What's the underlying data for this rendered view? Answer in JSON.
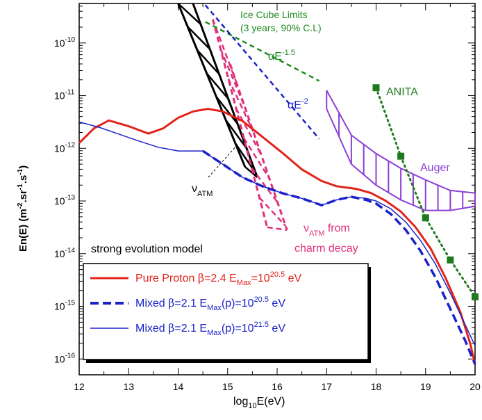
{
  "chart_data": {
    "type": "line",
    "x_log_range": [
      12,
      20
    ],
    "y_log_range": [
      -16.3,
      -9.25
    ],
    "xlabel": {
      "main": "log",
      "sub": "10",
      "rest": "E(eV)"
    },
    "ylabel": {
      "main": "En(E) (m",
      "exp1": "-2",
      "mid1": ".sr",
      "exp2": "-1",
      "mid2": ".s",
      "exp3": "-1",
      "end": ")"
    },
    "x_ticks": [
      "12",
      "13",
      "14",
      "15",
      "16",
      "17",
      "18",
      "19",
      "20"
    ],
    "y_ticks": [
      {
        "exp": -16,
        "label_base": "10",
        "label_exp": "-16"
      },
      {
        "exp": -15,
        "label_base": "10",
        "label_exp": "-15"
      },
      {
        "exp": -14,
        "label_base": "10",
        "label_exp": "-14"
      },
      {
        "exp": -13,
        "label_base": "10",
        "label_exp": "-13"
      },
      {
        "exp": -12,
        "label_base": "10",
        "label_exp": "-12"
      },
      {
        "exp": -11,
        "label_base": "10",
        "label_exp": "-11"
      },
      {
        "exp": -10,
        "label_base": "10",
        "label_exp": "-10"
      }
    ],
    "series": [
      {
        "name": "Pure Proton",
        "color": "#e2231a",
        "style": "solid-thick",
        "points": [
          [
            12,
            -11.9
          ],
          [
            12.3,
            -11.62
          ],
          [
            12.6,
            -11.47
          ],
          [
            13.0,
            -11.58
          ],
          [
            13.4,
            -11.72
          ],
          [
            13.7,
            -11.62
          ],
          [
            14.0,
            -11.42
          ],
          [
            14.3,
            -11.3
          ],
          [
            14.6,
            -11.25
          ],
          [
            14.9,
            -11.3
          ],
          [
            15.3,
            -11.48
          ],
          [
            15.7,
            -11.78
          ],
          [
            16.1,
            -12.08
          ],
          [
            16.5,
            -12.4
          ],
          [
            16.9,
            -12.62
          ],
          [
            17.2,
            -12.72
          ],
          [
            17.6,
            -12.77
          ],
          [
            17.9,
            -12.85
          ],
          [
            18.2,
            -13.0
          ],
          [
            18.5,
            -13.2
          ],
          [
            18.8,
            -13.5
          ],
          [
            19.1,
            -13.9
          ],
          [
            19.4,
            -14.45
          ],
          [
            19.7,
            -15.1
          ],
          [
            19.9,
            -15.7
          ],
          [
            20.0,
            -16.1
          ]
        ]
      },
      {
        "name": "Mixed 20.5",
        "color": "#1a22c8",
        "style": "dashed-thick",
        "points": [
          [
            14.5,
            -12.05
          ],
          [
            14.9,
            -12.3
          ],
          [
            15.3,
            -12.55
          ],
          [
            15.7,
            -12.72
          ],
          [
            16.1,
            -12.85
          ],
          [
            16.5,
            -12.95
          ],
          [
            16.9,
            -13.08
          ],
          [
            17.2,
            -12.98
          ],
          [
            17.5,
            -12.92
          ],
          [
            17.8,
            -12.98
          ],
          [
            18.0,
            -13.05
          ],
          [
            18.3,
            -13.25
          ],
          [
            18.6,
            -13.55
          ],
          [
            18.9,
            -13.95
          ],
          [
            19.2,
            -14.45
          ],
          [
            19.5,
            -15.05
          ],
          [
            19.8,
            -15.65
          ],
          [
            20.0,
            -16.1
          ]
        ]
      },
      {
        "name": "Mixed 21.5",
        "color": "#1a22c8",
        "style": "solid-thin",
        "points": [
          [
            12,
            -11.5
          ],
          [
            12.4,
            -11.6
          ],
          [
            12.8,
            -11.73
          ],
          [
            13.2,
            -11.86
          ],
          [
            13.6,
            -11.98
          ],
          [
            14.0,
            -12.05
          ],
          [
            14.5,
            -12.05
          ],
          [
            14.9,
            -12.3
          ],
          [
            15.3,
            -12.55
          ],
          [
            15.7,
            -12.72
          ],
          [
            16.1,
            -12.85
          ],
          [
            16.5,
            -12.95
          ],
          [
            16.9,
            -13.08
          ],
          [
            17.2,
            -12.98
          ],
          [
            17.5,
            -12.92
          ],
          [
            17.8,
            -12.95
          ],
          [
            18.0,
            -13.0
          ],
          [
            18.3,
            -13.15
          ],
          [
            18.6,
            -13.4
          ],
          [
            18.9,
            -13.75
          ],
          [
            19.2,
            -14.2
          ],
          [
            19.5,
            -14.75
          ],
          [
            19.8,
            -15.35
          ],
          [
            20.0,
            -15.75
          ]
        ]
      },
      {
        "name": "Ice Cube E^-1.5",
        "color": "#1f8a1f",
        "style": "dashed",
        "points": [
          [
            14.55,
            -9.6
          ],
          [
            16.85,
            -10.72
          ]
        ]
      },
      {
        "name": "Ice Cube E^-2",
        "color": "#1a22c8",
        "style": "dashed",
        "points": [
          [
            14.55,
            -9.28
          ],
          [
            16.85,
            -11.82
          ]
        ]
      },
      {
        "name": "ANITA",
        "color": "#1f7a1f",
        "style": "dotted-markers",
        "points": [
          [
            18.0,
            -10.85
          ],
          [
            18.5,
            -12.15
          ],
          [
            19.0,
            -13.32
          ],
          [
            19.5,
            -14.12
          ],
          [
            20.0,
            -14.82
          ]
        ]
      }
    ],
    "bands": [
      {
        "name": "nu ATM",
        "color": "#000000",
        "lower": [
          [
            14.3,
            -9.25
          ],
          [
            15.6,
            -12.55
          ]
        ],
        "upper": [
          [
            14.0,
            -9.25
          ],
          [
            15.35,
            -12.35
          ]
        ]
      },
      {
        "name": "nu ATM charm",
        "color": "#e0307a",
        "dashed": true,
        "lower": [
          [
            15.05,
            -10.4
          ],
          [
            16.2,
            -13.55
          ]
        ],
        "upper": [
          [
            14.7,
            -9.55
          ],
          [
            15.8,
            -13.5
          ]
        ]
      },
      {
        "name": "Auger",
        "color": "#8a3fd6",
        "upper": [
          [
            17.0,
            -10.9
          ],
          [
            17.5,
            -11.75
          ],
          [
            18.0,
            -12.1
          ],
          [
            18.5,
            -12.38
          ],
          [
            19.0,
            -12.6
          ],
          [
            19.5,
            -12.8
          ],
          [
            20.0,
            -12.85
          ]
        ],
        "lower": [
          [
            17.0,
            -11.25
          ],
          [
            17.5,
            -12.3
          ],
          [
            18.0,
            -12.7
          ],
          [
            18.5,
            -12.98
          ],
          [
            19.0,
            -13.18
          ],
          [
            19.5,
            -13.18
          ],
          [
            20.0,
            -13.1
          ]
        ]
      }
    ],
    "annotations": {
      "icecube_line1": "Ice Cube Limits",
      "icecube_line2": "(3 years, 90% C.L)",
      "e15_base": "αE",
      "e15_exp": "-1.5",
      "e2_base": "αE",
      "e2_exp": "-2",
      "anita": "ANITA",
      "auger": "Auger",
      "nuatm_nu": "ν",
      "nuatm_sub": "ATM",
      "charm_nu": "ν",
      "charm_sub": "ATM",
      "charm_from": " from",
      "charm_line2": "charm decay",
      "model": "strong evolution model"
    },
    "legend": [
      {
        "color": "#e2231a",
        "style": "solid-thick",
        "text1": "Pure Proton ",
        "beta": "β",
        "text2": "=2.4 E",
        "sub": "Max",
        "text3": "=10",
        "sup": "20.5",
        "text4": " eV"
      },
      {
        "color": "#1a22c8",
        "style": "dashed-thick",
        "text1": "Mixed ",
        "beta": "β",
        "text2": "=2.1 E",
        "sub": "Max",
        "text3": "(p)=10",
        "sup": "20.5",
        "text4": " eV"
      },
      {
        "color": "#1a22c8",
        "style": "solid-thin",
        "text1": "Mixed ",
        "beta": "β",
        "text2": "=2.1 E",
        "sub": "Max",
        "text3": "(p)=10",
        "sup": "21.5",
        "text4": " eV"
      }
    ]
  }
}
